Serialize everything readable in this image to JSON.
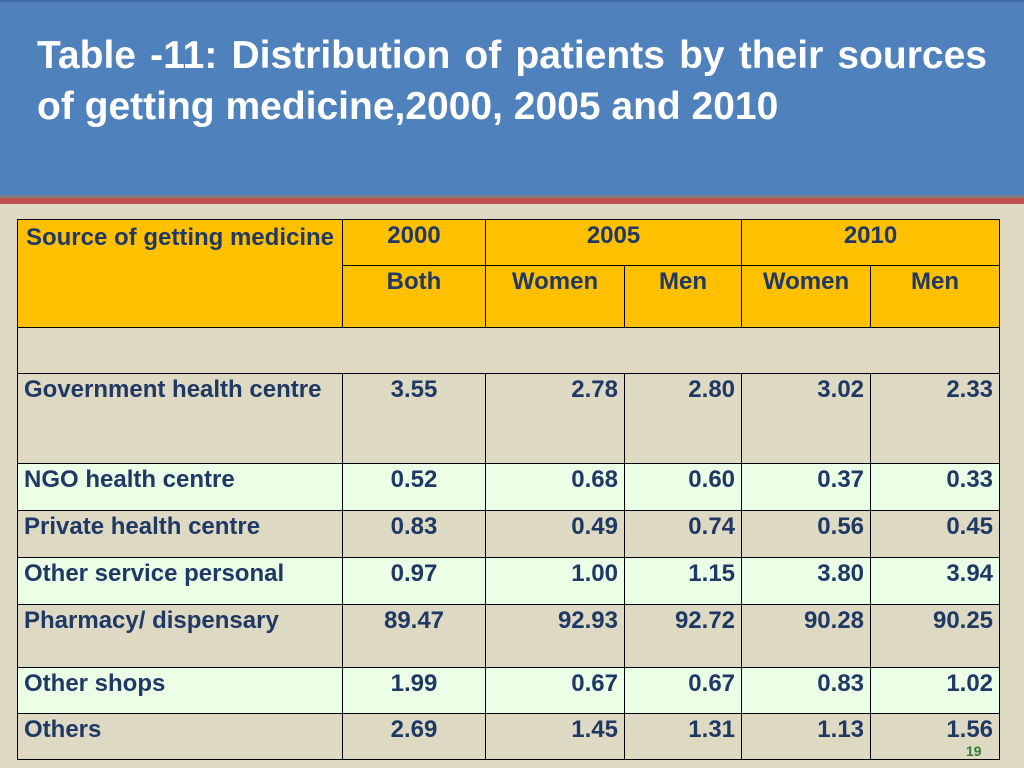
{
  "title": "Table -11: Distribution of patients by their sources of getting medicine,2000, 2005 and 2010",
  "table": {
    "header": {
      "source_label": "Source of getting medicine",
      "year_2000": "2000",
      "year_2005": "2005",
      "year_2010": "2010",
      "sub_2000": "Both",
      "sub_2005_women": "Women",
      "sub_2005_men": "Men",
      "sub_2010_women": "Women",
      "sub_2010_men": "Men"
    },
    "rows": [
      {
        "source": "Government health centre",
        "v2000": "3.55",
        "w2005": "2.78",
        "m2005": "2.80",
        "w2010": "3.02",
        "m2010": "2.33"
      },
      {
        "source": "NGO health centre",
        "v2000": "0.52",
        "w2005": "0.68",
        "m2005": "0.60",
        "w2010": "0.37",
        "m2010": "0.33"
      },
      {
        "source": "Private health centre",
        "v2000": "0.83",
        "w2005": "0.49",
        "m2005": "0.74",
        "w2010": "0.56",
        "m2010": "0.45"
      },
      {
        "source": "Other service personal",
        "v2000": "0.97",
        "w2005": "1.00",
        "m2005": "1.15",
        "w2010": "3.80",
        "m2010": "3.94"
      },
      {
        "source": "Pharmacy/ dispensary",
        "v2000": "89.47",
        "w2005": "92.93",
        "m2005": "92.72",
        "w2010": "90.28",
        "m2010": "90.25"
      },
      {
        "source": "Other shops",
        "v2000": "1.99",
        "w2005": "0.67",
        "m2005": "0.67",
        "w2010": "0.83",
        "m2010": "1.02"
      },
      {
        "source": "Others",
        "v2000": "2.69",
        "w2005": "1.45",
        "m2005": "1.31",
        "w2010": "1.13",
        "m2010": "1.56"
      }
    ]
  },
  "page_number": "19",
  "colors": {
    "title_bar": "#4f81bd",
    "header_fill": "#ffc000",
    "row_green": "#ebffe6",
    "row_beige": "#ddd9c3",
    "text": "#1f3864",
    "accent_red": "#c0504d"
  }
}
